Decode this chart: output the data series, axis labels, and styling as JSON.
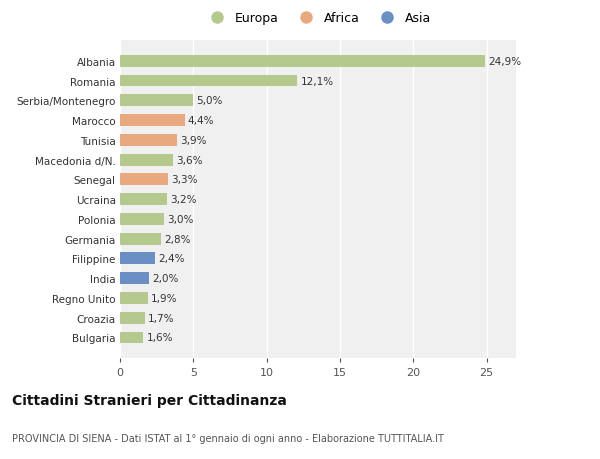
{
  "categories": [
    "Bulgaria",
    "Croazia",
    "Regno Unito",
    "India",
    "Filippine",
    "Germania",
    "Polonia",
    "Ucraina",
    "Senegal",
    "Macedonia d/N.",
    "Tunisia",
    "Marocco",
    "Serbia/Montenegro",
    "Romania",
    "Albania"
  ],
  "values": [
    1.6,
    1.7,
    1.9,
    2.0,
    2.4,
    2.8,
    3.0,
    3.2,
    3.3,
    3.6,
    3.9,
    4.4,
    5.0,
    12.1,
    24.9
  ],
  "continents": [
    "Europa",
    "Europa",
    "Europa",
    "Asia",
    "Asia",
    "Europa",
    "Europa",
    "Europa",
    "Africa",
    "Europa",
    "Africa",
    "Africa",
    "Europa",
    "Europa",
    "Europa"
  ],
  "colors": {
    "Europa": "#b5c98e",
    "Africa": "#e8a97e",
    "Asia": "#6b8fc2"
  },
  "labels": [
    "1,6%",
    "1,7%",
    "1,9%",
    "2,0%",
    "2,4%",
    "2,8%",
    "3,0%",
    "3,2%",
    "3,3%",
    "3,6%",
    "3,9%",
    "4,4%",
    "5,0%",
    "12,1%",
    "24,9%"
  ],
  "xlim": [
    0,
    27
  ],
  "xticks": [
    0,
    5,
    10,
    15,
    20,
    25
  ],
  "title": "Cittadini Stranieri per Cittadinanza",
  "subtitle": "PROVINCIA DI SIENA - Dati ISTAT al 1° gennaio di ogni anno - Elaborazione TUTTITALIA.IT",
  "legend_items": [
    "Europa",
    "Africa",
    "Asia"
  ],
  "background_color": "#ffffff",
  "plot_bg_color": "#f0f0f0"
}
